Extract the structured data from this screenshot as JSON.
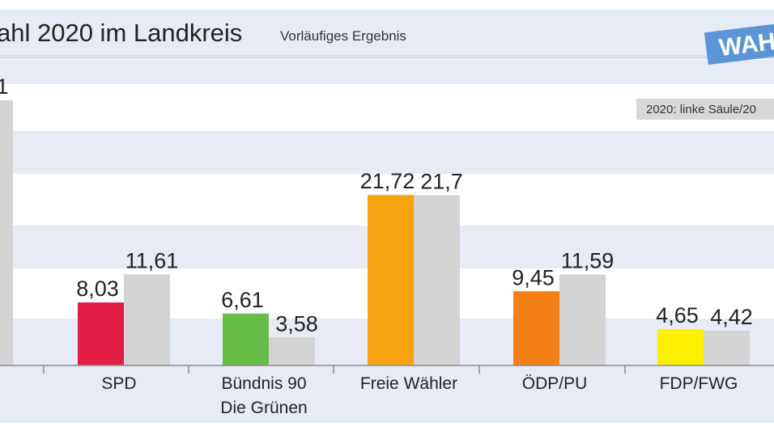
{
  "header": {
    "title": "ahl 2020 im Landkreis",
    "subtitle": "Vorläufiges Ergebnis",
    "badge": "WAH"
  },
  "legend": {
    "text": "2020: linke Säule/20"
  },
  "colors": {
    "band": "#e6ebf6",
    "previous": "#d3d3d3",
    "axis": "#8a8a8a",
    "badge": "#5b95d6"
  },
  "chart_data": {
    "type": "bar",
    "ylim": [
      0,
      34
    ],
    "partial_first_category": {
      "label_fragment": "1",
      "previous_value": 33.8
    },
    "categories": [
      {
        "label_lines": [
          "SPD"
        ],
        "current": 8.03,
        "current_label": "8,03",
        "previous": 11.61,
        "previous_label": "11,61",
        "color": "#e31c46"
      },
      {
        "label_lines": [
          "Bündnis 90",
          "Die Grünen"
        ],
        "current": 6.61,
        "current_label": "6,61",
        "previous": 3.58,
        "previous_label": "3,58",
        "color": "#67bd45"
      },
      {
        "label_lines": [
          "Freie Wähler"
        ],
        "current": 21.72,
        "current_label": "21,72",
        "previous": 21.7,
        "previous_label": "21,7",
        "color": "#f7a30f"
      },
      {
        "label_lines": [
          "ÖDP/PU"
        ],
        "current": 9.45,
        "current_label": "9,45",
        "previous": 11.59,
        "previous_label": "11,59",
        "color": "#f47f16"
      },
      {
        "label_lines": [
          "FDP/FWG"
        ],
        "current": 4.65,
        "current_label": "4,65",
        "previous": 4.42,
        "previous_label": "4,42",
        "color": "#fff000"
      }
    ]
  }
}
